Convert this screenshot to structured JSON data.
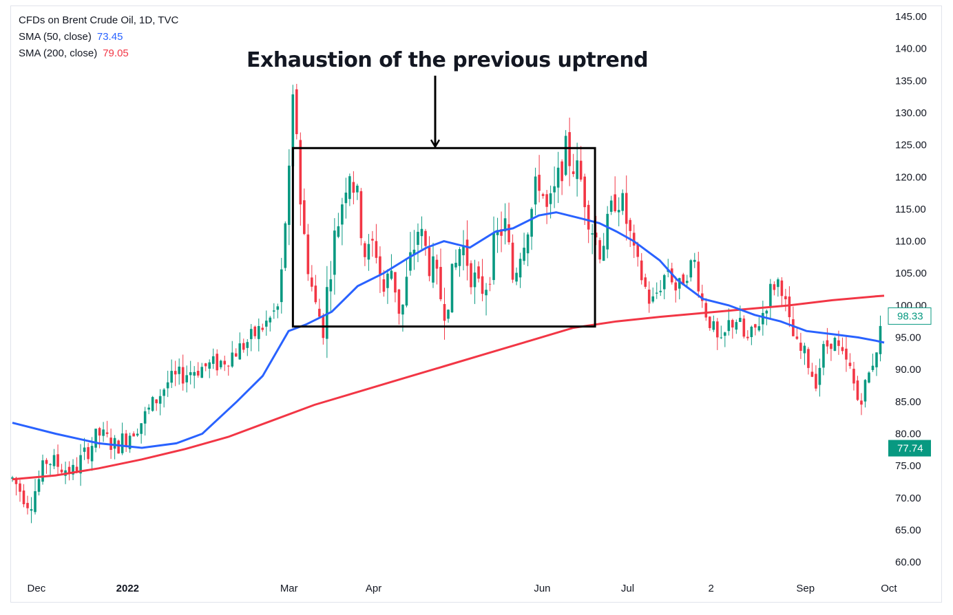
{
  "legend": {
    "symbol": "CFDs on Brent Crude Oil, 1D, TVC",
    "sma50_label": "SMA (50, close)",
    "sma50_value": "73.45",
    "sma200_label": "SMA (200, close)",
    "sma200_value": "79.05"
  },
  "annotation": {
    "text": "Exhaustion of the previous uptrend"
  },
  "price_tags": {
    "last": "98.33",
    "sma": "77.74"
  },
  "colors": {
    "up": "#089981",
    "down": "#f23645",
    "sma50": "#2962ff",
    "sma200": "#f23645",
    "box": "#000000"
  },
  "chart_data": {
    "type": "candlestick",
    "title": "CFDs on Brent Crude Oil, 1D, TVC",
    "ylim": [
      58,
      146
    ],
    "y_ticks": [
      "145.00",
      "140.00",
      "135.00",
      "130.00",
      "125.00",
      "120.00",
      "115.00",
      "110.00",
      "105.00",
      "100.00",
      "95.00",
      "90.00",
      "85.00",
      "80.00",
      "75.00",
      "70.00",
      "65.00",
      "60.00"
    ],
    "x_ticks": [
      {
        "label": "Dec",
        "bold": false,
        "t": 0.014
      },
      {
        "label": "2022",
        "bold": true,
        "t": 0.117
      },
      {
        "label": "Mar",
        "bold": false,
        "t": 0.307
      },
      {
        "label": "Apr",
        "bold": false,
        "t": 0.406
      },
      {
        "label": "Jun",
        "bold": false,
        "t": 0.601
      },
      {
        "label": "Jul",
        "bold": false,
        "t": 0.702
      },
      {
        "label": "2",
        "bold": false,
        "t": 0.803
      },
      {
        "label": "Sep",
        "bold": false,
        "t": 0.905
      },
      {
        "label": "Oct",
        "bold": false,
        "t": 1.003
      }
    ],
    "close_path": [
      [
        0.0,
        73
      ],
      [
        0.02,
        69
      ],
      [
        0.04,
        76
      ],
      [
        0.07,
        74
      ],
      [
        0.1,
        80
      ],
      [
        0.12,
        78
      ],
      [
        0.15,
        82
      ],
      [
        0.18,
        88
      ],
      [
        0.21,
        90
      ],
      [
        0.24,
        91
      ],
      [
        0.27,
        94
      ],
      [
        0.3,
        98
      ],
      [
        0.31,
        100
      ],
      [
        0.315,
        112
      ],
      [
        0.32,
        118
      ],
      [
        0.325,
        131
      ],
      [
        0.33,
        127
      ],
      [
        0.335,
        113
      ],
      [
        0.34,
        109
      ],
      [
        0.35,
        100
      ],
      [
        0.36,
        97
      ],
      [
        0.37,
        108
      ],
      [
        0.38,
        115
      ],
      [
        0.39,
        122
      ],
      [
        0.4,
        116
      ],
      [
        0.41,
        107
      ],
      [
        0.42,
        110
      ],
      [
        0.43,
        102
      ],
      [
        0.44,
        106
      ],
      [
        0.45,
        98
      ],
      [
        0.46,
        106
      ],
      [
        0.47,
        112
      ],
      [
        0.48,
        108
      ],
      [
        0.49,
        104
      ],
      [
        0.5,
        100
      ],
      [
        0.51,
        104
      ],
      [
        0.52,
        110
      ],
      [
        0.53,
        106
      ],
      [
        0.54,
        102
      ],
      [
        0.55,
        104
      ],
      [
        0.56,
        110
      ],
      [
        0.57,
        113
      ],
      [
        0.58,
        104
      ],
      [
        0.59,
        110
      ],
      [
        0.6,
        114
      ],
      [
        0.61,
        120
      ],
      [
        0.62,
        114
      ],
      [
        0.63,
        118
      ],
      [
        0.64,
        124
      ],
      [
        0.65,
        122
      ],
      [
        0.66,
        119
      ],
      [
        0.67,
        113
      ],
      [
        0.68,
        109
      ],
      [
        0.69,
        112
      ],
      [
        0.7,
        118
      ],
      [
        0.71,
        114
      ],
      [
        0.72,
        108
      ],
      [
        0.73,
        104
      ],
      [
        0.74,
        100
      ],
      [
        0.75,
        103
      ],
      [
        0.76,
        106
      ],
      [
        0.77,
        102
      ],
      [
        0.78,
        105
      ],
      [
        0.79,
        107
      ],
      [
        0.8,
        100
      ],
      [
        0.81,
        97
      ],
      [
        0.82,
        93
      ],
      [
        0.83,
        97
      ],
      [
        0.84,
        98
      ],
      [
        0.85,
        94
      ],
      [
        0.86,
        96
      ],
      [
        0.87,
        99
      ],
      [
        0.88,
        103
      ],
      [
        0.89,
        104
      ],
      [
        0.9,
        97
      ],
      [
        0.91,
        93
      ],
      [
        0.92,
        92
      ],
      [
        0.93,
        88
      ],
      [
        0.94,
        93
      ],
      [
        0.95,
        95
      ],
      [
        0.96,
        92
      ],
      [
        0.97,
        90
      ],
      [
        0.98,
        85
      ],
      [
        0.99,
        88
      ],
      [
        1.0,
        93
      ],
      [
        1.01,
        98
      ]
    ],
    "sma50": [
      [
        0.0,
        81.7
      ],
      [
        0.05,
        80
      ],
      [
        0.1,
        78.5
      ],
      [
        0.15,
        77.8
      ],
      [
        0.19,
        78.5
      ],
      [
        0.22,
        80
      ],
      [
        0.26,
        85
      ],
      [
        0.29,
        89
      ],
      [
        0.32,
        96
      ],
      [
        0.34,
        97
      ],
      [
        0.37,
        99
      ],
      [
        0.4,
        103
      ],
      [
        0.43,
        105
      ],
      [
        0.46,
        107.5
      ],
      [
        0.48,
        109
      ],
      [
        0.5,
        110
      ],
      [
        0.53,
        109
      ],
      [
        0.56,
        111.5
      ],
      [
        0.58,
        112
      ],
      [
        0.61,
        114
      ],
      [
        0.63,
        114.5
      ],
      [
        0.66,
        113.5
      ],
      [
        0.68,
        112.8
      ],
      [
        0.7,
        111.5
      ],
      [
        0.72,
        110
      ],
      [
        0.75,
        107
      ],
      [
        0.77,
        104
      ],
      [
        0.8,
        101
      ],
      [
        0.83,
        100
      ],
      [
        0.86,
        98.5
      ],
      [
        0.89,
        97.5
      ],
      [
        0.92,
        96
      ],
      [
        0.95,
        95.5
      ],
      [
        0.98,
        95
      ],
      [
        1.0,
        94.5
      ],
      [
        1.01,
        94.2
      ]
    ],
    "sma200": [
      [
        0.0,
        72.9
      ],
      [
        0.05,
        73.5
      ],
      [
        0.1,
        74.6
      ],
      [
        0.15,
        76
      ],
      [
        0.2,
        77.6
      ],
      [
        0.25,
        79.5
      ],
      [
        0.3,
        82
      ],
      [
        0.35,
        84.5
      ],
      [
        0.4,
        86.5
      ],
      [
        0.45,
        88.5
      ],
      [
        0.5,
        90.5
      ],
      [
        0.55,
        92.5
      ],
      [
        0.6,
        94.5
      ],
      [
        0.65,
        96.5
      ],
      [
        0.7,
        97.5
      ],
      [
        0.75,
        98.2
      ],
      [
        0.8,
        98.8
      ],
      [
        0.85,
        99.4
      ],
      [
        0.9,
        100
      ],
      [
        0.95,
        100.8
      ],
      [
        1.0,
        101.4
      ],
      [
        1.01,
        101.5
      ]
    ],
    "box": {
      "x0": 0.325,
      "x1": 0.675,
      "y_top": 124.5,
      "y_bottom": 96.7
    }
  }
}
